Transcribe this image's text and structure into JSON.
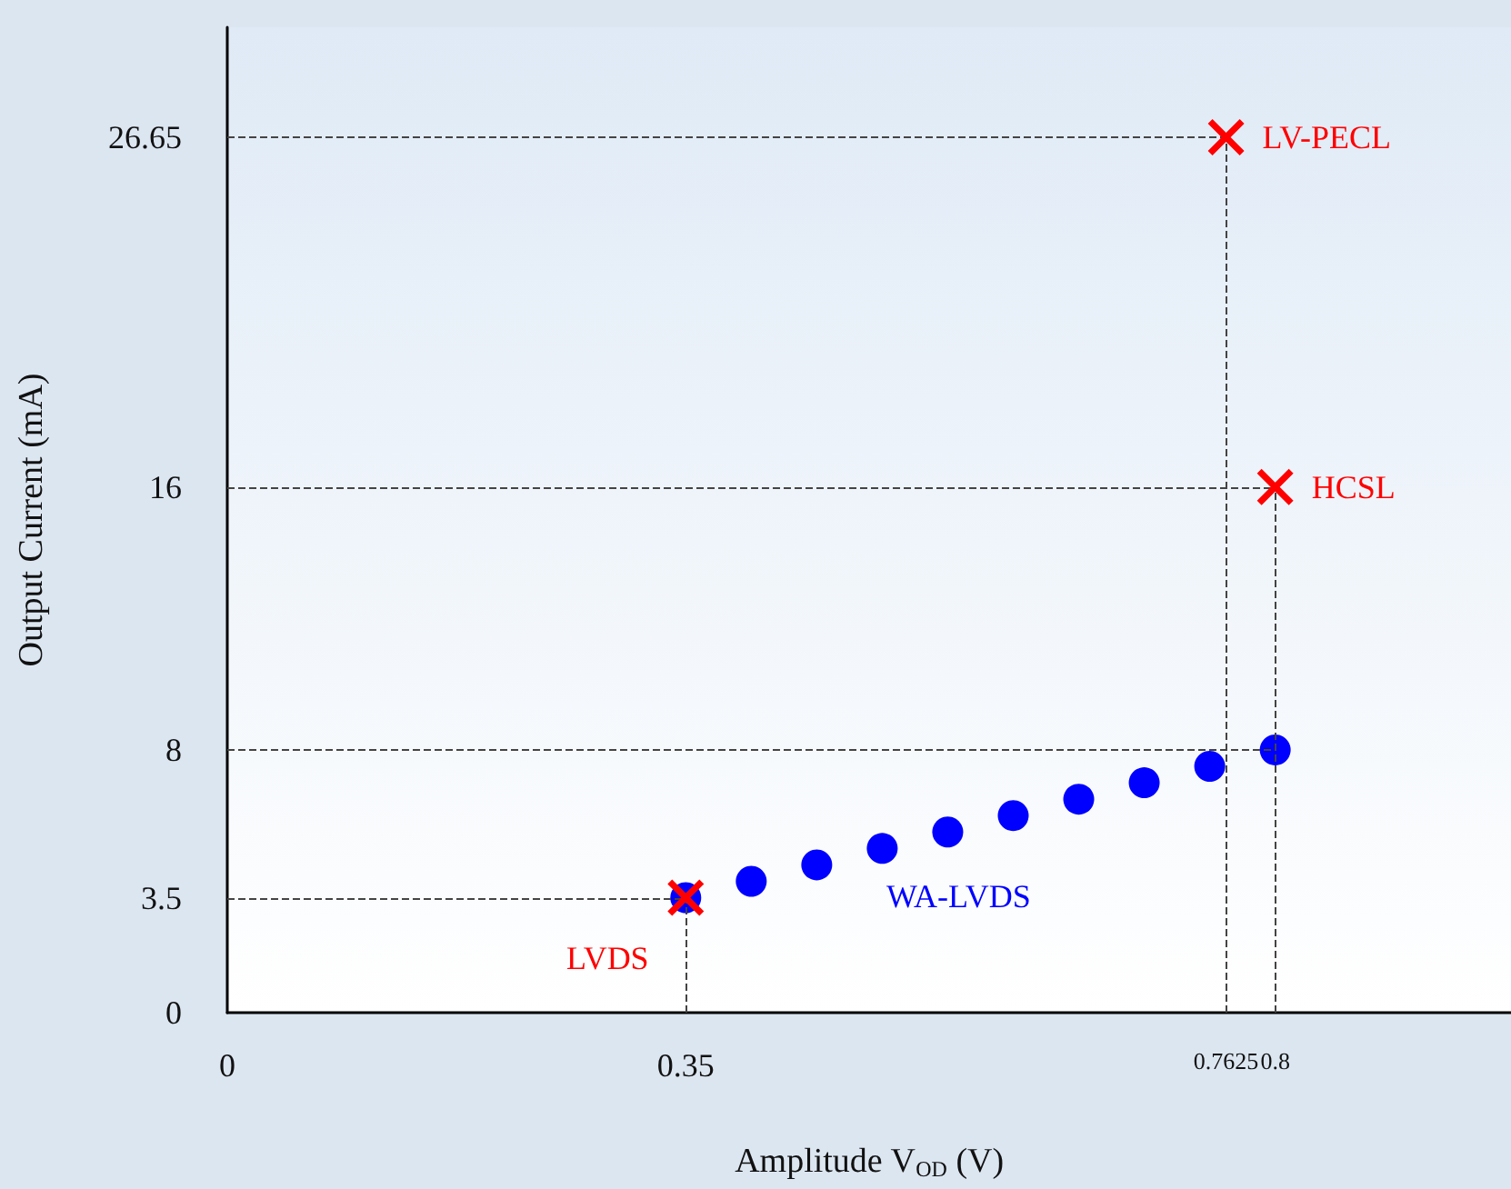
{
  "chart_data": {
    "type": "scatter",
    "xlabel": "Amplitude V$_{OD}$ (V)",
    "ylabel": "Output Current (mA)",
    "xlim": [
      0,
      0.98
    ],
    "ylim": [
      0,
      30
    ],
    "xticks": [
      0,
      0.35,
      0.7625,
      0.8
    ],
    "yticks": [
      0,
      3.5,
      8,
      16,
      26.65
    ],
    "grid": false,
    "legend": false,
    "series": [
      {
        "name": "WA-LVDS",
        "color": "#0000ff",
        "marker": "circle",
        "x": [
          0.35,
          0.4,
          0.45,
          0.5,
          0.55,
          0.6,
          0.65,
          0.7,
          0.75,
          0.8
        ],
        "values": [
          3.5,
          4.0,
          4.5,
          5.0,
          5.5,
          6.0,
          6.5,
          7.0,
          7.5,
          8.0
        ]
      },
      {
        "name": "LVDS",
        "color": "#ff0000",
        "marker": "cross",
        "x": [
          0.35
        ],
        "values": [
          3.5
        ]
      },
      {
        "name": "LV-PECL",
        "color": "#ff0000",
        "marker": "cross",
        "x": [
          0.7625
        ],
        "values": [
          26.65
        ]
      },
      {
        "name": "HCSL",
        "color": "#ff0000",
        "marker": "cross",
        "x": [
          0.8
        ],
        "values": [
          16
        ]
      }
    ],
    "ref_lines": [
      {
        "axis": "y",
        "value": 26.65,
        "color": "#444444",
        "line_style": "dashed"
      },
      {
        "axis": "y",
        "value": 16,
        "color": "#444444",
        "line_style": "dashed"
      },
      {
        "axis": "y",
        "value": 8,
        "color": "#444444",
        "line_style": "dashed"
      },
      {
        "axis": "y",
        "value": 3.5,
        "color": "#444444",
        "line_style": "dashed"
      },
      {
        "axis": "x",
        "value": 0.35,
        "color": "#444444",
        "line_style": "dashed"
      },
      {
        "axis": "x",
        "value": 0.7625,
        "color": "#444444",
        "line_style": "dashed"
      },
      {
        "axis": "x",
        "value": 0.8,
        "color": "#444444",
        "line_style": "dashed"
      }
    ]
  }
}
